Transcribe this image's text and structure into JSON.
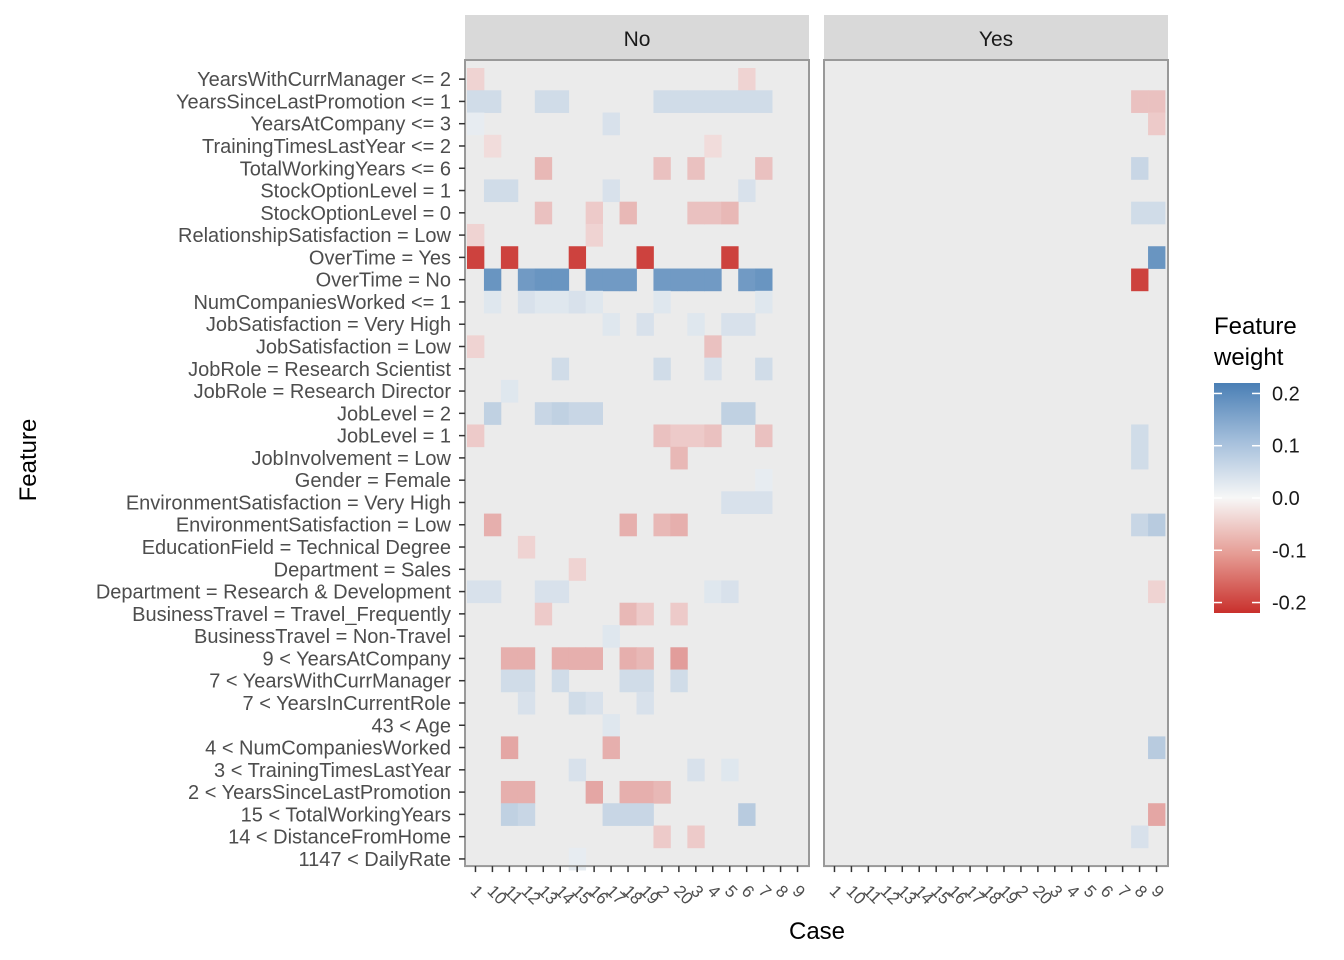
{
  "chart_data": {
    "type": "heatmap",
    "facet_labels": [
      "No",
      "Yes"
    ],
    "xlabel": "Case",
    "ylabel": "Feature",
    "x_tick_labels": [
      "1",
      "10",
      "11",
      "12",
      "13",
      "14",
      "15",
      "16",
      "17",
      "18",
      "19",
      "2",
      "20",
      "3",
      "4",
      "5",
      "6",
      "7",
      "8",
      "9"
    ],
    "features": [
      "YearsWithCurrManager <= 2",
      "YearsSinceLastPromotion <= 1",
      "YearsAtCompany <= 3",
      "TrainingTimesLastYear <= 2",
      "TotalWorkingYears <= 6",
      "StockOptionLevel = 1",
      "StockOptionLevel = 0",
      "RelationshipSatisfaction = Low",
      "OverTime = Yes",
      "OverTime = No",
      "NumCompaniesWorked <= 1",
      "JobSatisfaction = Very High",
      "JobSatisfaction = Low",
      "JobRole = Research Scientist",
      "JobRole = Research Director",
      "JobLevel = 2",
      "JobLevel = 1",
      "JobInvolvement = Low",
      "Gender = Female",
      "EnvironmentSatisfaction = Very High",
      "EnvironmentSatisfaction = Low",
      "EducationField = Technical Degree",
      "Department = Sales",
      "Department = Research & Development",
      "BusinessTravel = Travel_Frequently",
      "BusinessTravel = Non-Travel",
      "9 < YearsAtCompany",
      "7 < YearsWithCurrManager",
      "7 < YearsInCurrentRole",
      "43 < Age",
      "4 < NumCompaniesWorked",
      "3 < TrainingTimesLastYear",
      "2 < YearsSinceLastPromotion",
      "15 < TotalWorkingYears",
      "14 < DistanceFromHome",
      "1147 < DailyRate"
    ],
    "legend": {
      "title": "Feature\nweight",
      "labels": [
        "0.2",
        "0.1",
        "0.0",
        "-0.1",
        "-0.2"
      ],
      "values": [
        0.2,
        0.1,
        0.0,
        -0.1,
        -0.2
      ],
      "range": [
        -0.22,
        0.22
      ]
    },
    "colors": {
      "positive": "#4a7fb5",
      "mid": "#f7f7f7",
      "negative": "#c9302c",
      "panel_bg": "#ebebeb",
      "strip_bg": "#d9d9d9"
    },
    "cells": {
      "No": [
        [
          "1",
          "YearsWithCurrManager <= 2",
          -0.04
        ],
        [
          "6",
          "YearsWithCurrManager <= 2",
          -0.04
        ],
        [
          "1",
          "YearsSinceLastPromotion <= 1",
          0.05
        ],
        [
          "10",
          "YearsSinceLastPromotion <= 1",
          0.05
        ],
        [
          "13",
          "YearsSinceLastPromotion <= 1",
          0.05
        ],
        [
          "14",
          "YearsSinceLastPromotion <= 1",
          0.05
        ],
        [
          "2",
          "YearsSinceLastPromotion <= 1",
          0.05
        ],
        [
          "20",
          "YearsSinceLastPromotion <= 1",
          0.05
        ],
        [
          "3",
          "YearsSinceLastPromotion <= 1",
          0.05
        ],
        [
          "4",
          "YearsSinceLastPromotion <= 1",
          0.05
        ],
        [
          "5",
          "YearsSinceLastPromotion <= 1",
          0.05
        ],
        [
          "6",
          "YearsSinceLastPromotion <= 1",
          0.05
        ],
        [
          "7",
          "YearsSinceLastPromotion <= 1",
          0.05
        ],
        [
          "1",
          "YearsAtCompany <= 3",
          0.02
        ],
        [
          "17",
          "YearsAtCompany <= 3",
          0.04
        ],
        [
          "10",
          "TrainingTimesLastYear <= 2",
          -0.03
        ],
        [
          "4",
          "TrainingTimesLastYear <= 2",
          -0.03
        ],
        [
          "13",
          "TotalWorkingYears <= 6",
          -0.07
        ],
        [
          "2",
          "TotalWorkingYears <= 6",
          -0.06
        ],
        [
          "3",
          "TotalWorkingYears <= 6",
          -0.06
        ],
        [
          "7",
          "TotalWorkingYears <= 6",
          -0.06
        ],
        [
          "10",
          "StockOptionLevel = 1",
          0.05
        ],
        [
          "11",
          "StockOptionLevel = 1",
          0.05
        ],
        [
          "17",
          "StockOptionLevel = 1",
          0.04
        ],
        [
          "6",
          "StockOptionLevel = 1",
          0.04
        ],
        [
          "13",
          "StockOptionLevel = 0",
          -0.06
        ],
        [
          "16",
          "StockOptionLevel = 0",
          -0.05
        ],
        [
          "18",
          "StockOptionLevel = 0",
          -0.07
        ],
        [
          "3",
          "StockOptionLevel = 0",
          -0.06
        ],
        [
          "4",
          "StockOptionLevel = 0",
          -0.06
        ],
        [
          "5",
          "StockOptionLevel = 0",
          -0.07
        ],
        [
          "1",
          "RelationshipSatisfaction = Low",
          -0.04
        ],
        [
          "16",
          "RelationshipSatisfaction = Low",
          -0.04
        ],
        [
          "1",
          "OverTime = Yes",
          -0.2
        ],
        [
          "11",
          "OverTime = Yes",
          -0.2
        ],
        [
          "15",
          "OverTime = Yes",
          -0.2
        ],
        [
          "19",
          "OverTime = Yes",
          -0.2
        ],
        [
          "5",
          "OverTime = Yes",
          -0.2
        ],
        [
          "10",
          "OverTime = No",
          0.18
        ],
        [
          "12",
          "OverTime = No",
          0.17
        ],
        [
          "13",
          "OverTime = No",
          0.18
        ],
        [
          "14",
          "OverTime = No",
          0.18
        ],
        [
          "16",
          "OverTime = No",
          0.17
        ],
        [
          "17",
          "OverTime = No",
          0.17
        ],
        [
          "18",
          "OverTime = No",
          0.17
        ],
        [
          "2",
          "OverTime = No",
          0.17
        ],
        [
          "20",
          "OverTime = No",
          0.17
        ],
        [
          "3",
          "OverTime = No",
          0.17
        ],
        [
          "4",
          "OverTime = No",
          0.17
        ],
        [
          "6",
          "OverTime = No",
          0.17
        ],
        [
          "7",
          "OverTime = No",
          0.18
        ],
        [
          "10",
          "NumCompaniesWorked <= 1",
          0.03
        ],
        [
          "12",
          "NumCompaniesWorked <= 1",
          0.04
        ],
        [
          "13",
          "NumCompaniesWorked <= 1",
          0.03
        ],
        [
          "14",
          "NumCompaniesWorked <= 1",
          0.03
        ],
        [
          "15",
          "NumCompaniesWorked <= 1",
          0.04
        ],
        [
          "16",
          "NumCompaniesWorked <= 1",
          0.03
        ],
        [
          "2",
          "NumCompaniesWorked <= 1",
          0.03
        ],
        [
          "7",
          "NumCompaniesWorked <= 1",
          0.03
        ],
        [
          "17",
          "JobSatisfaction = Very High",
          0.03
        ],
        [
          "19",
          "JobSatisfaction = Very High",
          0.04
        ],
        [
          "3",
          "JobSatisfaction = Very High",
          0.03
        ],
        [
          "5",
          "JobSatisfaction = Very High",
          0.04
        ],
        [
          "6",
          "JobSatisfaction = Very High",
          0.04
        ],
        [
          "1",
          "JobSatisfaction = Low",
          -0.04
        ],
        [
          "4",
          "JobSatisfaction = Low",
          -0.06
        ],
        [
          "14",
          "JobRole = Research Scientist",
          0.05
        ],
        [
          "2",
          "JobRole = Research Scientist",
          0.05
        ],
        [
          "4",
          "JobRole = Research Scientist",
          0.04
        ],
        [
          "7",
          "JobRole = Research Scientist",
          0.05
        ],
        [
          "11",
          "JobRole = Research Director",
          0.03
        ],
        [
          "10",
          "JobLevel = 2",
          0.07
        ],
        [
          "13",
          "JobLevel = 2",
          0.06
        ],
        [
          "14",
          "JobLevel = 2",
          0.07
        ],
        [
          "15",
          "JobLevel = 2",
          0.06
        ],
        [
          "16",
          "JobLevel = 2",
          0.06
        ],
        [
          "5",
          "JobLevel = 2",
          0.07
        ],
        [
          "6",
          "JobLevel = 2",
          0.07
        ],
        [
          "1",
          "JobLevel = 1",
          -0.05
        ],
        [
          "2",
          "JobLevel = 1",
          -0.06
        ],
        [
          "20",
          "JobLevel = 1",
          -0.05
        ],
        [
          "3",
          "JobLevel = 1",
          -0.05
        ],
        [
          "4",
          "JobLevel = 1",
          -0.06
        ],
        [
          "7",
          "JobLevel = 1",
          -0.06
        ],
        [
          "20",
          "JobInvolvement = Low",
          -0.07
        ],
        [
          "7",
          "Gender = Female",
          0.02
        ],
        [
          "5",
          "EnvironmentSatisfaction = Very High",
          0.04
        ],
        [
          "6",
          "EnvironmentSatisfaction = Very High",
          0.04
        ],
        [
          "7",
          "EnvironmentSatisfaction = Very High",
          0.04
        ],
        [
          "10",
          "EnvironmentSatisfaction = Low",
          -0.08
        ],
        [
          "18",
          "EnvironmentSatisfaction = Low",
          -0.08
        ],
        [
          "2",
          "EnvironmentSatisfaction = Low",
          -0.07
        ],
        [
          "20",
          "EnvironmentSatisfaction = Low",
          -0.08
        ],
        [
          "12",
          "EducationField = Technical Degree",
          -0.04
        ],
        [
          "15",
          "Department = Sales",
          -0.04
        ],
        [
          "1",
          "Department = Research & Development",
          0.04
        ],
        [
          "10",
          "Department = Research & Development",
          0.04
        ],
        [
          "13",
          "Department = Research & Development",
          0.04
        ],
        [
          "14",
          "Department = Research & Development",
          0.04
        ],
        [
          "4",
          "Department = Research & Development",
          0.03
        ],
        [
          "5",
          "Department = Research & Development",
          0.04
        ],
        [
          "13",
          "BusinessTravel = Travel_Frequently",
          -0.05
        ],
        [
          "18",
          "BusinessTravel = Travel_Frequently",
          -0.07
        ],
        [
          "19",
          "BusinessTravel = Travel_Frequently",
          -0.05
        ],
        [
          "20",
          "BusinessTravel = Travel_Frequently",
          -0.05
        ],
        [
          "17",
          "BusinessTravel = Non-Travel",
          0.03
        ],
        [
          "11",
          "9 < YearsAtCompany",
          -0.08
        ],
        [
          "12",
          "9 < YearsAtCompany",
          -0.08
        ],
        [
          "14",
          "9 < YearsAtCompany",
          -0.08
        ],
        [
          "15",
          "9 < YearsAtCompany",
          -0.08
        ],
        [
          "16",
          "9 < YearsAtCompany",
          -0.08
        ],
        [
          "18",
          "9 < YearsAtCompany",
          -0.08
        ],
        [
          "19",
          "9 < YearsAtCompany",
          -0.07
        ],
        [
          "20",
          "9 < YearsAtCompany",
          -0.1
        ],
        [
          "11",
          "7 < YearsWithCurrManager",
          0.05
        ],
        [
          "12",
          "7 < YearsWithCurrManager",
          0.05
        ],
        [
          "14",
          "7 < YearsWithCurrManager",
          0.05
        ],
        [
          "18",
          "7 < YearsWithCurrManager",
          0.05
        ],
        [
          "19",
          "7 < YearsWithCurrManager",
          0.05
        ],
        [
          "20",
          "7 < YearsWithCurrManager",
          0.05
        ],
        [
          "12",
          "7 < YearsInCurrentRole",
          0.04
        ],
        [
          "15",
          "7 < YearsInCurrentRole",
          0.05
        ],
        [
          "16",
          "7 < YearsInCurrentRole",
          0.04
        ],
        [
          "19",
          "7 < YearsInCurrentRole",
          0.04
        ],
        [
          "17",
          "43 < Age",
          0.03
        ],
        [
          "11",
          "4 < NumCompaniesWorked",
          -0.09
        ],
        [
          "17",
          "4 < NumCompaniesWorked",
          -0.08
        ],
        [
          "15",
          "3 < TrainingTimesLastYear",
          0.04
        ],
        [
          "3",
          "3 < TrainingTimesLastYear",
          0.04
        ],
        [
          "5",
          "3 < TrainingTimesLastYear",
          0.03
        ],
        [
          "11",
          "2 < YearsSinceLastPromotion",
          -0.08
        ],
        [
          "12",
          "2 < YearsSinceLastPromotion",
          -0.08
        ],
        [
          "16",
          "2 < YearsSinceLastPromotion",
          -0.09
        ],
        [
          "18",
          "2 < YearsSinceLastPromotion",
          -0.08
        ],
        [
          "19",
          "2 < YearsSinceLastPromotion",
          -0.08
        ],
        [
          "2",
          "2 < YearsSinceLastPromotion",
          -0.07
        ],
        [
          "11",
          "15 < TotalWorkingYears",
          0.07
        ],
        [
          "12",
          "15 < TotalWorkingYears",
          0.06
        ],
        [
          "17",
          "15 < TotalWorkingYears",
          0.06
        ],
        [
          "18",
          "15 < TotalWorkingYears",
          0.06
        ],
        [
          "19",
          "15 < TotalWorkingYears",
          0.06
        ],
        [
          "6",
          "15 < TotalWorkingYears",
          0.08
        ],
        [
          "2",
          "14 < DistanceFromHome",
          -0.05
        ],
        [
          "3",
          "14 < DistanceFromHome",
          -0.05
        ],
        [
          "15",
          "1147 < DailyRate",
          0.02
        ]
      ],
      "Yes": [
        [
          "8",
          "YearsSinceLastPromotion <= 1",
          -0.06
        ],
        [
          "9",
          "YearsSinceLastPromotion <= 1",
          -0.06
        ],
        [
          "9",
          "YearsAtCompany <= 3",
          -0.05
        ],
        [
          "8",
          "TotalWorkingYears <= 6",
          0.06
        ],
        [
          "8",
          "StockOptionLevel = 0",
          0.05
        ],
        [
          "9",
          "StockOptionLevel = 0",
          0.05
        ],
        [
          "9",
          "OverTime = Yes",
          0.18
        ],
        [
          "8",
          "OverTime = No",
          -0.2
        ],
        [
          "8",
          "JobLevel = 1",
          0.05
        ],
        [
          "8",
          "JobInvolvement = Low",
          0.05
        ],
        [
          "8",
          "EnvironmentSatisfaction = Low",
          0.06
        ],
        [
          "9",
          "EnvironmentSatisfaction = Low",
          0.08
        ],
        [
          "9",
          "Department = Research & Development",
          -0.04
        ],
        [
          "9",
          "4 < NumCompaniesWorked",
          0.08
        ],
        [
          "9",
          "15 < TotalWorkingYears",
          -0.09
        ],
        [
          "8",
          "14 < DistanceFromHome",
          0.04
        ]
      ]
    }
  }
}
